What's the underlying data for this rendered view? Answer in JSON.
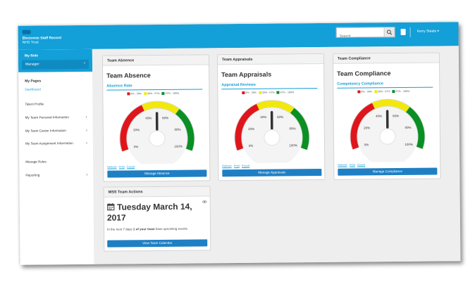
{
  "header": {
    "brand_line1": "Electronic Staff Record",
    "brand_line2": "NHS Trust",
    "search_placeholder": "Search",
    "user_name": "Kerry Steele ▾"
  },
  "sidebar": {
    "my_role_title": "My Role",
    "role_selected": "Manager",
    "my_pages_title": "My Pages",
    "items": [
      {
        "label": "Dashboard",
        "active": true,
        "chevron": ""
      },
      {
        "label": "Talent Profile",
        "active": false,
        "chevron": ""
      },
      {
        "label": "My Team Personal Information",
        "active": false,
        "chevron": "›"
      },
      {
        "label": "My Team Career Information",
        "active": false,
        "chevron": "›"
      },
      {
        "label": "My Team Assignment Information",
        "active": false,
        "chevron": "›"
      },
      {
        "label": "Manage Rules",
        "active": false,
        "chevron": ""
      },
      {
        "label": "Reporting",
        "active": false,
        "chevron": "›"
      }
    ]
  },
  "legend": {
    "red": "0% - 39%",
    "yellow": "39% - 67%",
    "green": "67% - 100%"
  },
  "gauge_ticks": [
    "0%",
    "20%",
    "40%",
    "60%",
    "80%",
    "100%"
  ],
  "colors": {
    "red": "#e0151b",
    "yellow": "#f2e80c",
    "green": "#0a8f24",
    "accent": "#139fd8",
    "button": "#1f7fc4"
  },
  "panels": [
    {
      "header": "Team Absence",
      "title": "Team Absence",
      "gauge_label": "Absence Rate",
      "value_percent": 50,
      "links": {
        "refresh": "Refresh",
        "print": "Print",
        "export": "Export"
      },
      "button": "Manage Absence"
    },
    {
      "header": "Team Appraisals",
      "title": "Team Appraisals",
      "gauge_label": "Appraisal Reviews",
      "value_percent": 50,
      "links": {
        "refresh": "Refresh",
        "print": "Print",
        "export": "Export"
      },
      "button": "Manage Appraisals"
    },
    {
      "header": "Team Compliance",
      "title": "Team Compliance",
      "gauge_label": "Competency Compliance",
      "value_percent": 50,
      "links": {
        "refresh": "Refresh",
        "print": "Print",
        "export": "Export"
      },
      "button": "Manage Compliance"
    }
  ],
  "actions": {
    "header": "MSS Team Actions",
    "date": "Tuesday March 14, 2017",
    "msg_prefix": "In the next 7 days ",
    "msg_bold": "1 of your team",
    "msg_suffix": " have upcoming events",
    "button": "View Team Calendar"
  }
}
